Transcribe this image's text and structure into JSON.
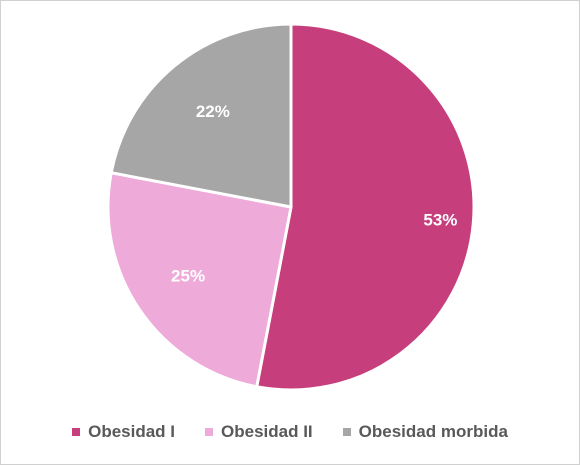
{
  "chart_data": {
    "type": "pie",
    "categories": [
      "Obesidad I",
      "Obesidad II",
      "Obesidad morbida"
    ],
    "values": [
      53,
      25,
      22
    ],
    "labels": [
      "53%",
      "25%",
      "22%"
    ],
    "colors": [
      "#c63e7c",
      "#eeaad8",
      "#a6a6a6"
    ],
    "legend_position": "bottom"
  }
}
